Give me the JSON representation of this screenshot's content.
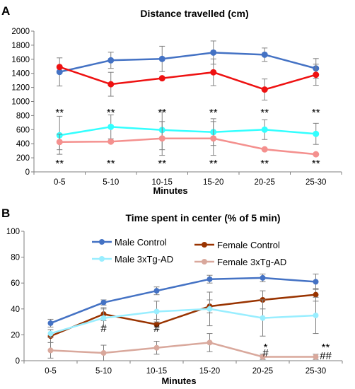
{
  "chart_data": [
    {
      "panel": "A",
      "type": "line",
      "title": "Distance travelled (cm)",
      "xlabel": "Minutes",
      "ylabel": "",
      "categories": [
        "0-5",
        "5-10",
        "10-15",
        "15-20",
        "20-25",
        "25-30"
      ],
      "ylim": [
        0,
        2000
      ],
      "yticks": [
        0,
        200,
        400,
        600,
        800,
        1000,
        1200,
        1400,
        1600,
        1800,
        2000
      ],
      "grid": false,
      "legend": "none",
      "series": [
        {
          "color": "#4472c4",
          "values": [
            1420,
            1585,
            1605,
            1695,
            1665,
            1470
          ],
          "error": [
            200,
            115,
            180,
            165,
            95,
            140
          ]
        },
        {
          "color": "#ee1111",
          "values": [
            1490,
            1245,
            1330,
            1415,
            1170,
            1380
          ],
          "error": [
            0,
            170,
            0,
            190,
            150,
            150
          ]
        },
        {
          "color": "#33ffff",
          "values": [
            520,
            640,
            595,
            565,
            600,
            540
          ],
          "error": [
            270,
            170,
            280,
            190,
            140,
            150
          ]
        },
        {
          "color": "#f4908e",
          "values": [
            425,
            430,
            475,
            475,
            320,
            250
          ],
          "error": [
            110,
            0,
            240,
            240,
            0,
            0
          ]
        }
      ],
      "annotations_upper": [
        "**",
        "**",
        "**",
        "**",
        "**",
        "**"
      ],
      "annotations_lower": [
        "**",
        "**",
        "**",
        "**",
        "**",
        "**"
      ]
    },
    {
      "panel": "B",
      "type": "line",
      "title": "Time spent in center (% of 5 min)",
      "xlabel": "Minutes",
      "ylabel": "",
      "categories": [
        "0-5",
        "5-10",
        "10-15",
        "15-20",
        "20-25",
        "25-30"
      ],
      "ylim": [
        0,
        100
      ],
      "yticks": [
        0,
        20,
        40,
        60,
        80,
        100
      ],
      "grid": false,
      "legend": "inside-top",
      "series": [
        {
          "name": "Male Control",
          "color": "#4472c4",
          "values": [
            29,
            45,
            54,
            63,
            64,
            61
          ],
          "error": [
            3,
            2,
            3,
            3,
            3,
            6
          ]
        },
        {
          "name": "Female Control",
          "color": "#993300",
          "values": [
            19,
            36,
            28,
            42,
            47,
            51
          ],
          "error": [
            5,
            5,
            4,
            5,
            7,
            5
          ]
        },
        {
          "name": "Male 3xTg-AD",
          "color": "#99eeff",
          "values": [
            21,
            33,
            38,
            40,
            33,
            35
          ],
          "error": [
            3,
            7,
            8,
            13,
            14,
            14
          ]
        },
        {
          "name": "Female 3xTg-AD",
          "color": "#d9a89c",
          "values": [
            8,
            6,
            10,
            14,
            3,
            3
          ],
          "error": [
            6,
            6,
            5,
            7,
            2,
            2
          ]
        }
      ],
      "annotations": [
        {
          "category": "5-10",
          "text": "#"
        },
        {
          "category": "10-15",
          "text": "#"
        },
        {
          "category": "20-25",
          "text": "*"
        },
        {
          "category": "20-25",
          "text": "#"
        },
        {
          "category": "25-30",
          "text": "**"
        },
        {
          "category": "25-30",
          "text": "##"
        }
      ]
    }
  ]
}
